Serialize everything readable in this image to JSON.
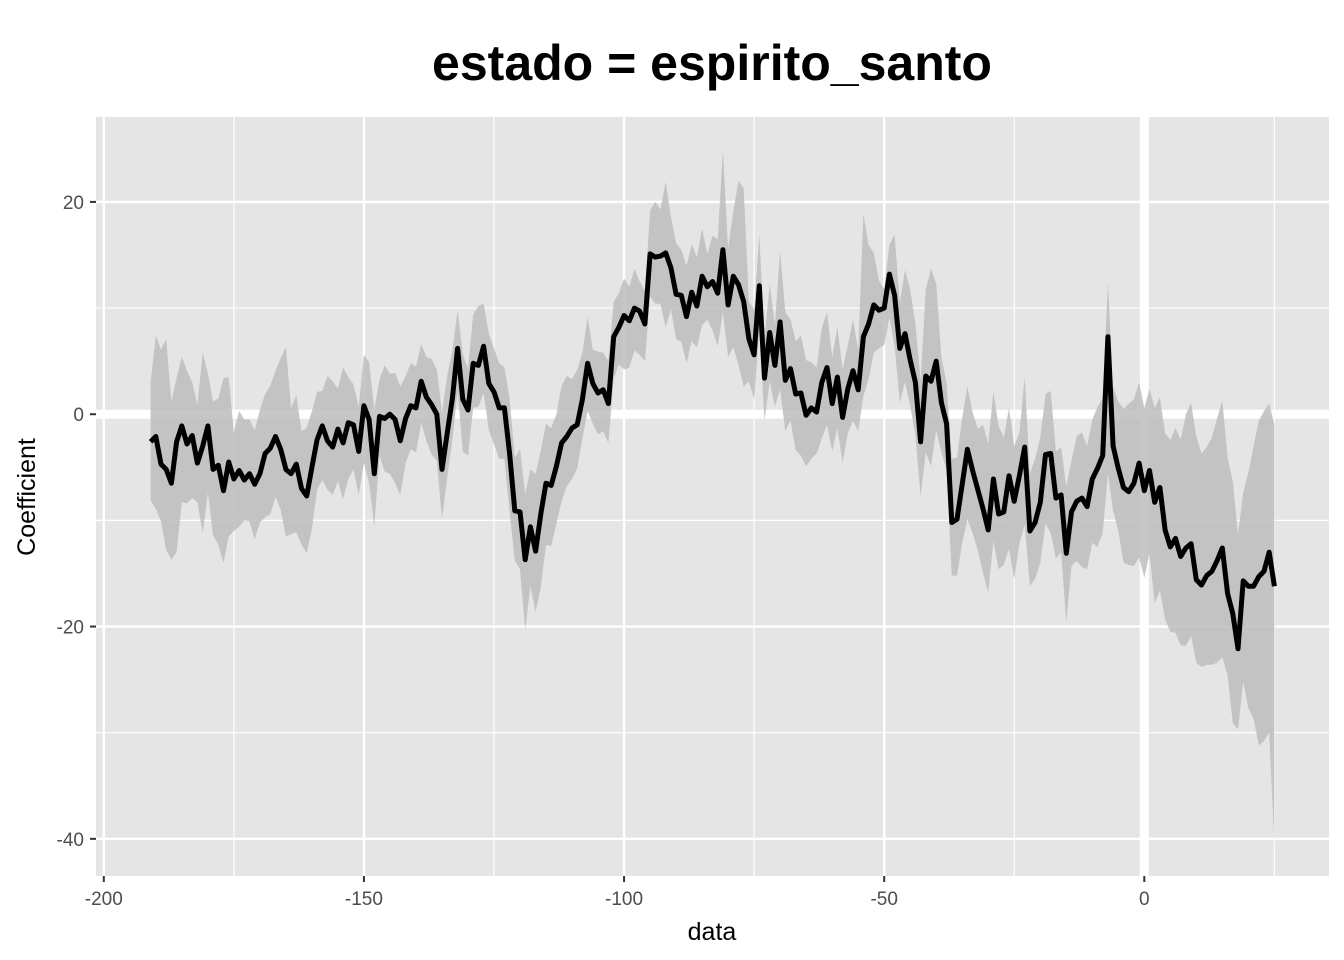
{
  "chart_data": {
    "type": "line",
    "title": "estado = espirito_santo",
    "xlabel": "data",
    "ylabel": "Coefficient",
    "xlim": [
      -201.5,
      35.5
    ],
    "ylim": [
      -43.5,
      28
    ],
    "x_ticks": [
      -200,
      -150,
      -100,
      -50,
      0
    ],
    "x_tick_labels": [
      "-200",
      "-150",
      "-100",
      "-50",
      "0"
    ],
    "y_ticks": [
      -40,
      -20,
      0,
      20
    ],
    "y_tick_labels": [
      "-40",
      "-20",
      "0",
      "20"
    ],
    "reference_lines": [
      {
        "axis": "y",
        "value": 0
      },
      {
        "axis": "x",
        "value": 0
      }
    ],
    "grid": true,
    "colors": {
      "panel": "#e5e5e5",
      "grid": "#ffffff",
      "line": "#000000",
      "ribbon": "#bdbdbd"
    },
    "series": [
      {
        "x": [
          -191,
          -190,
          -189,
          -188,
          -187,
          -186,
          -185,
          -184,
          -183,
          -182,
          -181,
          -180,
          -179,
          -178,
          -177,
          -176,
          -175,
          -174,
          -173,
          -172,
          -171,
          -170,
          -169,
          -168,
          -167,
          -166,
          -165,
          -164,
          -163,
          -162,
          -161,
          -160,
          -159,
          -158,
          -157,
          -156,
          -155,
          -154,
          -153,
          -152,
          -151,
          -150,
          -149,
          -148,
          -147,
          -146,
          -145,
          -144,
          -143,
          -142,
          -141,
          -140,
          -139,
          -138,
          -137,
          -136,
          -135,
          -134,
          -133,
          -132,
          -131,
          -130,
          -129,
          -128,
          -127,
          -126,
          -125,
          -124,
          -123,
          -122,
          -121,
          -120,
          -119,
          -118,
          -117,
          -116,
          -115,
          -114,
          -113,
          -112,
          -111,
          -110,
          -109,
          -108,
          -107,
          -106,
          -105,
          -104,
          -103,
          -102,
          -101,
          -100,
          -99,
          -98,
          -97,
          -96,
          -95,
          -94,
          -93,
          -92,
          -91,
          -90,
          -89,
          -88,
          -87,
          -86,
          -85,
          -84,
          -83,
          -82,
          -81,
          -80,
          -79,
          -78,
          -77,
          -76,
          -75,
          -74,
          -73,
          -72,
          -71,
          -70,
          -69,
          -68,
          -67,
          -66,
          -65,
          -64,
          -63,
          -62,
          -61,
          -60,
          -59,
          -58,
          -57,
          -56,
          -55,
          -54,
          -53,
          -52,
          -51,
          -50,
          -49,
          -48,
          -47,
          -46,
          -45,
          -44,
          -43,
          -42,
          -41,
          -40,
          -39,
          -38,
          -37,
          -36,
          -35,
          -34,
          -33,
          -32,
          -31,
          -30,
          -29,
          -28,
          -27,
          -26,
          -25,
          -24,
          -23,
          -22,
          -21,
          -20,
          -19,
          -18,
          -17,
          -16,
          -15,
          -14,
          -13,
          -12,
          -11,
          -10,
          -9,
          -8,
          -7,
          -6,
          -5,
          -4,
          -3,
          -2,
          -1,
          0,
          1,
          2,
          3,
          4,
          5,
          6,
          7,
          8,
          9,
          10,
          11,
          12,
          13,
          14,
          15,
          16,
          17,
          18,
          19,
          20,
          21,
          22,
          23,
          24,
          25
        ],
        "y": [
          -2.6,
          -2.1,
          -4.7,
          -5.2,
          -6.5,
          -2.6,
          -1.1,
          -2.8,
          -2.0,
          -4.6,
          -3.0,
          -1.1,
          -5.2,
          -4.8,
          -7.2,
          -4.5,
          -6.1,
          -5.3,
          -6.2,
          -5.6,
          -6.6,
          -5.6,
          -3.7,
          -3.2,
          -2.1,
          -3.3,
          -5.2,
          -5.6,
          -4.7,
          -7.0,
          -7.7,
          -5.0,
          -2.4,
          -1.1,
          -2.5,
          -3.1,
          -1.4,
          -2.7,
          -0.8,
          -1.0,
          -3.5,
          0.8,
          -0.5,
          -5.6,
          -0.2,
          -0.4,
          0.0,
          -0.5,
          -2.5,
          -0.4,
          0.8,
          0.6,
          3.1,
          1.6,
          0.9,
          0.0,
          -5.2,
          -1.8,
          1.5,
          6.2,
          1.4,
          0.4,
          4.8,
          4.6,
          6.4,
          2.9,
          2.1,
          0.6,
          0.6,
          -3.7,
          -9.1,
          -9.2,
          -13.7,
          -10.6,
          -12.9,
          -9.4,
          -6.5,
          -6.7,
          -4.9,
          -2.7,
          -2.1,
          -1.3,
          -1.0,
          1.4,
          4.8,
          2.9,
          2.0,
          2.3,
          1.0,
          7.3,
          8.2,
          9.3,
          8.8,
          10.0,
          9.7,
          8.5,
          15.1,
          14.8,
          14.9,
          15.2,
          13.8,
          11.3,
          11.2,
          9.2,
          11.5,
          10.2,
          13.0,
          12.0,
          12.5,
          11.4,
          15.5,
          10.3,
          13.0,
          12.2,
          10.6,
          7.1,
          5.6,
          12.1,
          3.4,
          7.7,
          4.6,
          8.7,
          3.2,
          4.3,
          1.9,
          2.0,
          -0.1,
          0.6,
          0.2,
          3.0,
          4.4,
          1.0,
          3.5,
          -0.3,
          2.4,
          4.1,
          2.3,
          7.3,
          8.5,
          10.3,
          9.8,
          10.0,
          13.2,
          11.2,
          6.2,
          7.6,
          5.1,
          3.0,
          -2.6,
          3.6,
          3.1,
          5.0,
          1.1,
          -0.9,
          -10.2,
          -9.9,
          -6.6,
          -3.3,
          -5.3,
          -7.1,
          -8.9,
          -10.9,
          -6.1,
          -9.4,
          -9.2,
          -5.8,
          -8.2,
          -5.8,
          -3.1,
          -11.0,
          -10.2,
          -8.3,
          -3.8,
          -3.7,
          -7.9,
          -7.6,
          -13.1,
          -9.2,
          -8.2,
          -7.9,
          -8.7,
          -6.1,
          -5.1,
          -3.9,
          7.3,
          -3.0,
          -5.1,
          -6.9,
          -7.3,
          -6.5,
          -4.6,
          -7.2,
          -5.3,
          -8.3,
          -6.9,
          -10.9,
          -12.5,
          -11.7,
          -13.4,
          -12.6,
          -12.2,
          -15.6,
          -16.1,
          -15.2,
          -14.8,
          -13.8,
          -12.6,
          -16.9,
          -18.8,
          -22.1,
          -15.7,
          -16.2,
          -16.2,
          -15.3,
          -14.8,
          -13.0,
          -16.2
        ],
        "ymax": [
          3.0,
          7.4,
          6.1,
          7.1,
          1.2,
          3.4,
          5.4,
          4.1,
          3.0,
          0.9,
          5.8,
          3.8,
          1.2,
          1.5,
          3.4,
          3.5,
          -1.7,
          0.3,
          -0.5,
          -0.5,
          -1.5,
          0.4,
          1.9,
          2.7,
          4.1,
          5.3,
          6.3,
          0.6,
          1.8,
          -1.6,
          -1.3,
          0.3,
          2.1,
          2.2,
          3.6,
          3.1,
          2.4,
          4.4,
          3.5,
          2.8,
          0.7,
          5.6,
          4.9,
          0.4,
          3.3,
          4.6,
          3.8,
          3.9,
          2.6,
          3.6,
          4.8,
          4.5,
          6.6,
          5.4,
          5.2,
          4.2,
          0.2,
          3.6,
          6.0,
          9.8,
          5.7,
          4.3,
          9.4,
          10.2,
          10.4,
          7.6,
          6.2,
          4.8,
          4.4,
          1.5,
          -4.1,
          -3.3,
          -7.5,
          -5.2,
          -5.6,
          -3.4,
          -0.9,
          -1.3,
          0.0,
          2.7,
          3.6,
          3.3,
          4.2,
          5.8,
          9.2,
          6.1,
          5.9,
          5.8,
          5.0,
          10.6,
          11.4,
          12.8,
          12.0,
          13.7,
          12.5,
          11.6,
          19.2,
          20.0,
          19.3,
          21.9,
          18.6,
          16.1,
          15.5,
          14.0,
          16.0,
          14.8,
          17.5,
          15.1,
          16.8,
          16.5,
          24.9,
          15.6,
          19.1,
          22.0,
          21.3,
          10.6,
          9.9,
          16.9,
          7.1,
          12.3,
          8.4,
          15.4,
          9.6,
          8.9,
          6.9,
          7.4,
          5.1,
          4.9,
          4.4,
          8.1,
          9.6,
          5.4,
          8.2,
          4.2,
          6.5,
          8.9,
          6.0,
          18.9,
          15.9,
          15.2,
          12.6,
          11.8,
          16.0,
          16.9,
          10.5,
          13.6,
          11.7,
          8.6,
          3.1,
          11.8,
          13.7,
          12.3,
          5.4,
          2.9,
          -4.2,
          -4.1,
          -0.3,
          2.6,
          0.2,
          -1.4,
          -1.0,
          -2.8,
          2.1,
          -1.1,
          -2.2,
          0.6,
          -3.0,
          -1.8,
          3.5,
          -5.6,
          -4.2,
          -2.2,
          1.9,
          2.2,
          -3.5,
          -3.1,
          -6.8,
          -4.4,
          -2.1,
          -1.7,
          -3.0,
          -0.5,
          0.7,
          1.5,
          12.4,
          2.6,
          1.2,
          0.5,
          1.0,
          1.4,
          3.0,
          0.6,
          2.4,
          0.6,
          1.6,
          -1.8,
          -2.4,
          -1.3,
          -2.4,
          0.0,
          1.1,
          -2.1,
          -3.7,
          -3.1,
          -2.2,
          -0.4,
          1.3,
          -4.1,
          -6.3,
          -11.3,
          -7.4,
          -5.5,
          -3.0,
          -0.6,
          0.3,
          1.0,
          -1.0
        ],
        "ymin": [
          -8.1,
          -8.9,
          -10.1,
          -12.8,
          -13.7,
          -13.0,
          -8.3,
          -8.4,
          -7.9,
          -8.3,
          -11.2,
          -7.4,
          -11.4,
          -12.3,
          -14.0,
          -11.5,
          -11.0,
          -10.6,
          -10.0,
          -10.1,
          -11.8,
          -10.2,
          -9.7,
          -9.4,
          -7.8,
          -9.0,
          -11.5,
          -11.3,
          -11.1,
          -12.3,
          -13.1,
          -10.8,
          -7.1,
          -6.2,
          -7.1,
          -7.6,
          -6.3,
          -8.0,
          -6.1,
          -5.2,
          -7.6,
          -4.6,
          -6.5,
          -10.5,
          -3.9,
          -5.4,
          -5.6,
          -6.5,
          -7.6,
          -4.6,
          -3.3,
          -3.6,
          -0.8,
          -2.5,
          -3.8,
          -4.4,
          -9.9,
          -6.0,
          -2.4,
          2.2,
          -3.5,
          -3.9,
          0.6,
          0.7,
          2.0,
          -1.5,
          -2.8,
          -4.2,
          -4.2,
          -9.2,
          -13.8,
          -14.6,
          -20.3,
          -16.2,
          -18.6,
          -16.3,
          -12.3,
          -12.4,
          -10.3,
          -8.2,
          -6.8,
          -6.1,
          -5.1,
          -2.3,
          0.3,
          -0.9,
          -1.9,
          -1.6,
          -2.7,
          3.3,
          4.7,
          4.2,
          4.4,
          6.0,
          5.6,
          5.0,
          11.1,
          10.4,
          10.4,
          8.2,
          9.9,
          7.1,
          6.8,
          4.8,
          6.9,
          6.3,
          8.4,
          8.9,
          7.9,
          6.4,
          9.6,
          5.4,
          6.3,
          4.7,
          2.6,
          3.1,
          1.4,
          7.8,
          -0.6,
          3.1,
          0.7,
          2.3,
          -1.6,
          -0.6,
          -3.4,
          -3.9,
          -4.9,
          -4.2,
          -3.7,
          -2.3,
          -1.0,
          -3.5,
          -1.3,
          -4.6,
          -1.8,
          -0.6,
          -1.6,
          1.7,
          3.3,
          5.8,
          6.2,
          6.5,
          9.1,
          6.4,
          1.1,
          3.0,
          0.8,
          -2.0,
          -7.7,
          -3.6,
          -4.9,
          -1.5,
          -3.6,
          -5.3,
          -15.2,
          -15.2,
          -12.1,
          -9.9,
          -11.2,
          -12.8,
          -14.9,
          -16.8,
          -11.9,
          -14.6,
          -14.2,
          -12.7,
          -15.5,
          -12.2,
          -10.4,
          -16.2,
          -15.5,
          -14.0,
          -10.3,
          -11.2,
          -13.6,
          -13.0,
          -19.6,
          -14.3,
          -13.8,
          -14.4,
          -14.6,
          -12.1,
          -12.5,
          -11.2,
          -5.6,
          -9.1,
          -11.0,
          -14.0,
          -14.2,
          -14.3,
          -13.5,
          -15.4,
          -13.1,
          -17.8,
          -16.6,
          -19.3,
          -20.5,
          -20.6,
          -21.8,
          -21.8,
          -20.9,
          -23.4,
          -23.8,
          -23.6,
          -23.6,
          -23.4,
          -22.9,
          -24.6,
          -29.1,
          -29.7,
          -25.2,
          -27.7,
          -28.7,
          -31.2,
          -30.8,
          -30.0,
          -40.5
        ]
      }
    ]
  }
}
